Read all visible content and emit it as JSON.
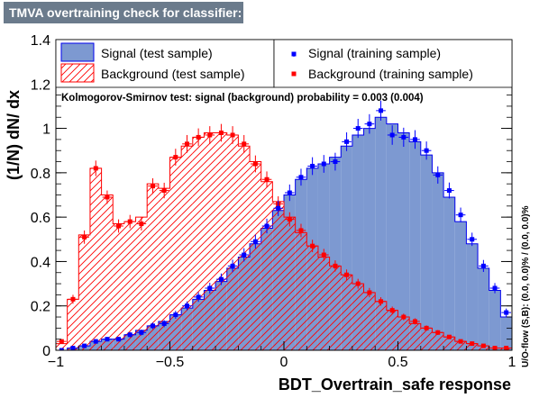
{
  "window": {
    "title": "TMVA overtraining check for classifier: BDT_Overtrain_safe"
  },
  "colors": {
    "signal_fill": "#7d99d1",
    "signal_line": "#0000ee",
    "signal_marker": "#0000ff",
    "background_line": "#ff0000",
    "background_marker": "#ff0000",
    "title_bg": "#6b7b8c"
  },
  "chart_data": {
    "type": "histogram",
    "title": "TMVA overtraining check for classifier: BDT_Overtrain_safe",
    "xlabel": "BDT_Overtrain_safe response",
    "ylabel": "(1/N) dN/ dx",
    "xlim": [
      -1,
      1
    ],
    "ylim": [
      0,
      1.4
    ],
    "x_ticks": [
      {
        "value": -1,
        "label": "−1"
      },
      {
        "value": -0.5,
        "label": "−0.5"
      },
      {
        "value": 0,
        "label": "0"
      },
      {
        "value": 0.5,
        "label": "0.5"
      },
      {
        "value": 1,
        "label": "1"
      }
    ],
    "y_ticks": [
      {
        "value": 0,
        "label": "0"
      },
      {
        "value": 0.2,
        "label": "0.2"
      },
      {
        "value": 0.4,
        "label": "0.4"
      },
      {
        "value": 0.6,
        "label": "0.6"
      },
      {
        "value": 0.8,
        "label": "0.8"
      },
      {
        "value": 1,
        "label": "1"
      },
      {
        "value": 1.2,
        "label": "1.2"
      },
      {
        "value": 1.4,
        "label": "1.4"
      }
    ],
    "bin_edges": {
      "start": -1,
      "width": 0.05,
      "count": 40
    },
    "legend": {
      "signal_test": "Signal (test sample)",
      "background_test": "Background (test sample)",
      "signal_train": "Signal (training sample)",
      "background_train": "Background (training sample)"
    },
    "ks_text": "Kolmogorov-Smirnov test: signal (background) probability = 0.003 (0.004)",
    "overflow_text": "U/O-flow (S,B): (0.0, 0.0)% / (0.0, 0.0)%",
    "series": [
      {
        "name": "Signal (test sample)",
        "kind": "filled-histogram",
        "values": [
          0.0,
          0.01,
          0.02,
          0.04,
          0.05,
          0.05,
          0.07,
          0.09,
          0.11,
          0.13,
          0.16,
          0.19,
          0.23,
          0.27,
          0.31,
          0.37,
          0.42,
          0.48,
          0.55,
          0.63,
          0.7,
          0.77,
          0.82,
          0.84,
          0.87,
          0.92,
          0.97,
          1.0,
          1.05,
          1.02,
          0.98,
          0.94,
          0.88,
          0.8,
          0.69,
          0.58,
          0.48,
          0.37,
          0.27,
          0.15
        ]
      },
      {
        "name": "Background (test sample)",
        "kind": "hatched-histogram",
        "values": [
          0.03,
          0.23,
          0.52,
          0.82,
          0.7,
          0.57,
          0.58,
          0.6,
          0.75,
          0.73,
          0.87,
          0.92,
          0.96,
          0.98,
          0.98,
          0.97,
          0.92,
          0.85,
          0.76,
          0.67,
          0.6,
          0.53,
          0.47,
          0.42,
          0.38,
          0.34,
          0.3,
          0.26,
          0.22,
          0.18,
          0.15,
          0.12,
          0.1,
          0.08,
          0.06,
          0.04,
          0.03,
          0.02,
          0.01,
          0.01
        ]
      },
      {
        "name": "Signal (training sample)",
        "kind": "points",
        "values": [
          0.0,
          0.01,
          0.02,
          0.04,
          0.05,
          0.05,
          0.07,
          0.08,
          0.11,
          0.12,
          0.16,
          0.2,
          0.24,
          0.28,
          0.32,
          0.38,
          0.43,
          0.49,
          0.56,
          0.64,
          0.71,
          0.78,
          0.83,
          0.84,
          0.85,
          0.94,
          1.0,
          1.02,
          1.08,
          0.97,
          0.96,
          0.95,
          0.9,
          0.79,
          0.72,
          0.61,
          0.5,
          0.38,
          0.28,
          0.17
        ],
        "errors": [
          0.005,
          0.006,
          0.008,
          0.01,
          0.01,
          0.01,
          0.012,
          0.013,
          0.015,
          0.016,
          0.018,
          0.02,
          0.022,
          0.024,
          0.026,
          0.028,
          0.03,
          0.031,
          0.033,
          0.035,
          0.037,
          0.038,
          0.04,
          0.04,
          0.04,
          0.042,
          0.043,
          0.044,
          0.045,
          0.044,
          0.043,
          0.042,
          0.041,
          0.039,
          0.036,
          0.033,
          0.03,
          0.027,
          0.023,
          0.018
        ]
      },
      {
        "name": "Background (training sample)",
        "kind": "points",
        "values": [
          0.04,
          0.23,
          0.51,
          0.82,
          0.69,
          0.56,
          0.58,
          0.57,
          0.74,
          0.72,
          0.87,
          0.93,
          0.96,
          0.97,
          0.98,
          0.97,
          0.93,
          0.84,
          0.77,
          0.66,
          0.59,
          0.54,
          0.47,
          0.43,
          0.38,
          0.34,
          0.3,
          0.26,
          0.22,
          0.18,
          0.15,
          0.13,
          0.1,
          0.08,
          0.06,
          0.04,
          0.03,
          0.02,
          0.01,
          0.01
        ],
        "errors": [
          0.01,
          0.02,
          0.03,
          0.035,
          0.03,
          0.03,
          0.03,
          0.03,
          0.035,
          0.035,
          0.038,
          0.04,
          0.04,
          0.04,
          0.04,
          0.04,
          0.04,
          0.038,
          0.036,
          0.034,
          0.032,
          0.03,
          0.028,
          0.027,
          0.025,
          0.024,
          0.022,
          0.021,
          0.019,
          0.017,
          0.015,
          0.014,
          0.012,
          0.011,
          0.009,
          0.008,
          0.006,
          0.005,
          0.004,
          0.004
        ]
      }
    ]
  }
}
